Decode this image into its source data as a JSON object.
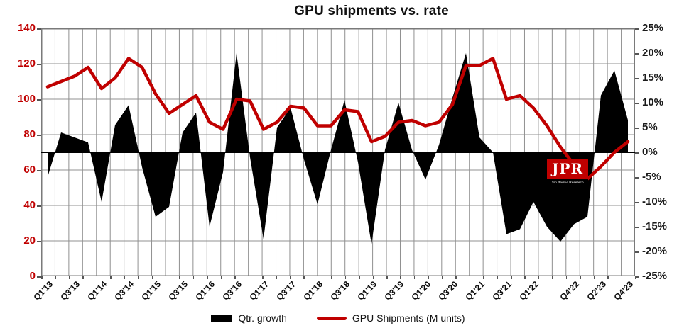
{
  "title": "GPU shipments vs. rate",
  "logo": {
    "initials": "JPR",
    "subtext": "Jon Peddie Research"
  },
  "legend": [
    {
      "label": "Qtr. growth",
      "swatch": "black-rect"
    },
    {
      "label": "GPU Shipments (M units)",
      "swatch": "red-line"
    }
  ],
  "colors": {
    "series_line_red": "#C00000",
    "series_area_black": "#000000",
    "left_axis_text": "#C00000",
    "right_axis_text": "#1a1a1a",
    "grid": "#909090",
    "border": "#7a7a7a",
    "zero_axis": "#000000"
  },
  "left_axis": {
    "tick_labels": [
      "140",
      "120",
      "100",
      "80",
      "60",
      "40",
      "20",
      "0"
    ],
    "range": [
      0,
      140
    ]
  },
  "right_axis": {
    "tick_labels": [
      "25%",
      "20%",
      "15%",
      "10%",
      "5%",
      "0%",
      "-5%",
      "-10%",
      "-15%",
      "-20%",
      "-25%"
    ],
    "range": [
      -25,
      25
    ]
  },
  "x_axis": {
    "visible_labels": [
      "Q1'13",
      "Q3'13",
      "Q1'14",
      "Q3'14",
      "Q1'15",
      "Q3'15",
      "Q1'16",
      "Q3'16",
      "Q1'17",
      "Q3'17",
      "Q1'18",
      "Q3'18",
      "Q1'19",
      "Q3'19",
      "Q1'20",
      "Q3'20",
      "Q1'21",
      "Q3'21",
      "Q1'22",
      "Q4'22",
      "Q2'23",
      "Q4'23"
    ],
    "visible_label_point_indices": [
      0,
      2,
      4,
      6,
      8,
      10,
      12,
      14,
      16,
      18,
      20,
      22,
      24,
      26,
      28,
      30,
      32,
      34,
      36,
      39,
      41,
      43
    ]
  },
  "chart_data": {
    "type": "combo",
    "title": "GPU shipments vs. rate",
    "categories": [
      "Q1'13",
      "Q2'13",
      "Q3'13",
      "Q4'13",
      "Q1'14",
      "Q2'14",
      "Q3'14",
      "Q4'14",
      "Q1'15",
      "Q2'15",
      "Q3'15",
      "Q4'15",
      "Q1'16",
      "Q2'16",
      "Q3'16",
      "Q4'16",
      "Q1'17",
      "Q2'17",
      "Q3'17",
      "Q4'17",
      "Q1'18",
      "Q2'18",
      "Q3'18",
      "Q4'18",
      "Q1'19",
      "Q2'19",
      "Q3'19",
      "Q4'19",
      "Q1'20",
      "Q2'20",
      "Q3'20",
      "Q4'20",
      "Q1'21",
      "Q2'21",
      "Q3'21",
      "Q4'21",
      "Q1'22",
      "Q2'22",
      "Q3'22",
      "Q4'22",
      "Q1'23",
      "Q2'23",
      "Q3'23",
      "Q4'23"
    ],
    "series": [
      {
        "name": "Qtr. growth",
        "type": "area",
        "axis": "right",
        "unit": "%",
        "color": "#000000",
        "values": [
          -5,
          4,
          3,
          2,
          -10,
          5.5,
          9.5,
          -3,
          -13,
          -11,
          4,
          8,
          -15,
          -4,
          20,
          -1,
          -17.5,
          5,
          9,
          -1.5,
          -10.5,
          0.5,
          10.5,
          -2,
          -18.5,
          0.5,
          10,
          0.5,
          -5.5,
          1.5,
          11,
          20,
          3,
          0,
          -16.5,
          -15.5,
          -10,
          -15,
          -18,
          -14.5,
          -13,
          11.5,
          16.5,
          6.5
        ]
      },
      {
        "name": "GPU Shipments (M units)",
        "type": "line",
        "axis": "left",
        "unit": "M units",
        "color": "#C00000",
        "values": [
          107,
          110,
          113,
          118,
          106,
          112,
          123,
          118,
          103,
          92,
          97,
          102,
          87,
          83,
          100,
          99,
          83,
          87,
          96,
          95,
          85,
          85,
          94,
          93,
          76,
          79,
          87,
          88,
          85,
          87,
          97,
          119,
          119,
          123,
          100,
          102,
          95,
          85,
          73,
          63,
          55,
          62,
          70,
          76
        ]
      }
    ],
    "left_ylim": [
      0,
      140
    ],
    "right_ylim": [
      -25,
      25
    ],
    "grid": true,
    "legend_position": "bottom"
  }
}
